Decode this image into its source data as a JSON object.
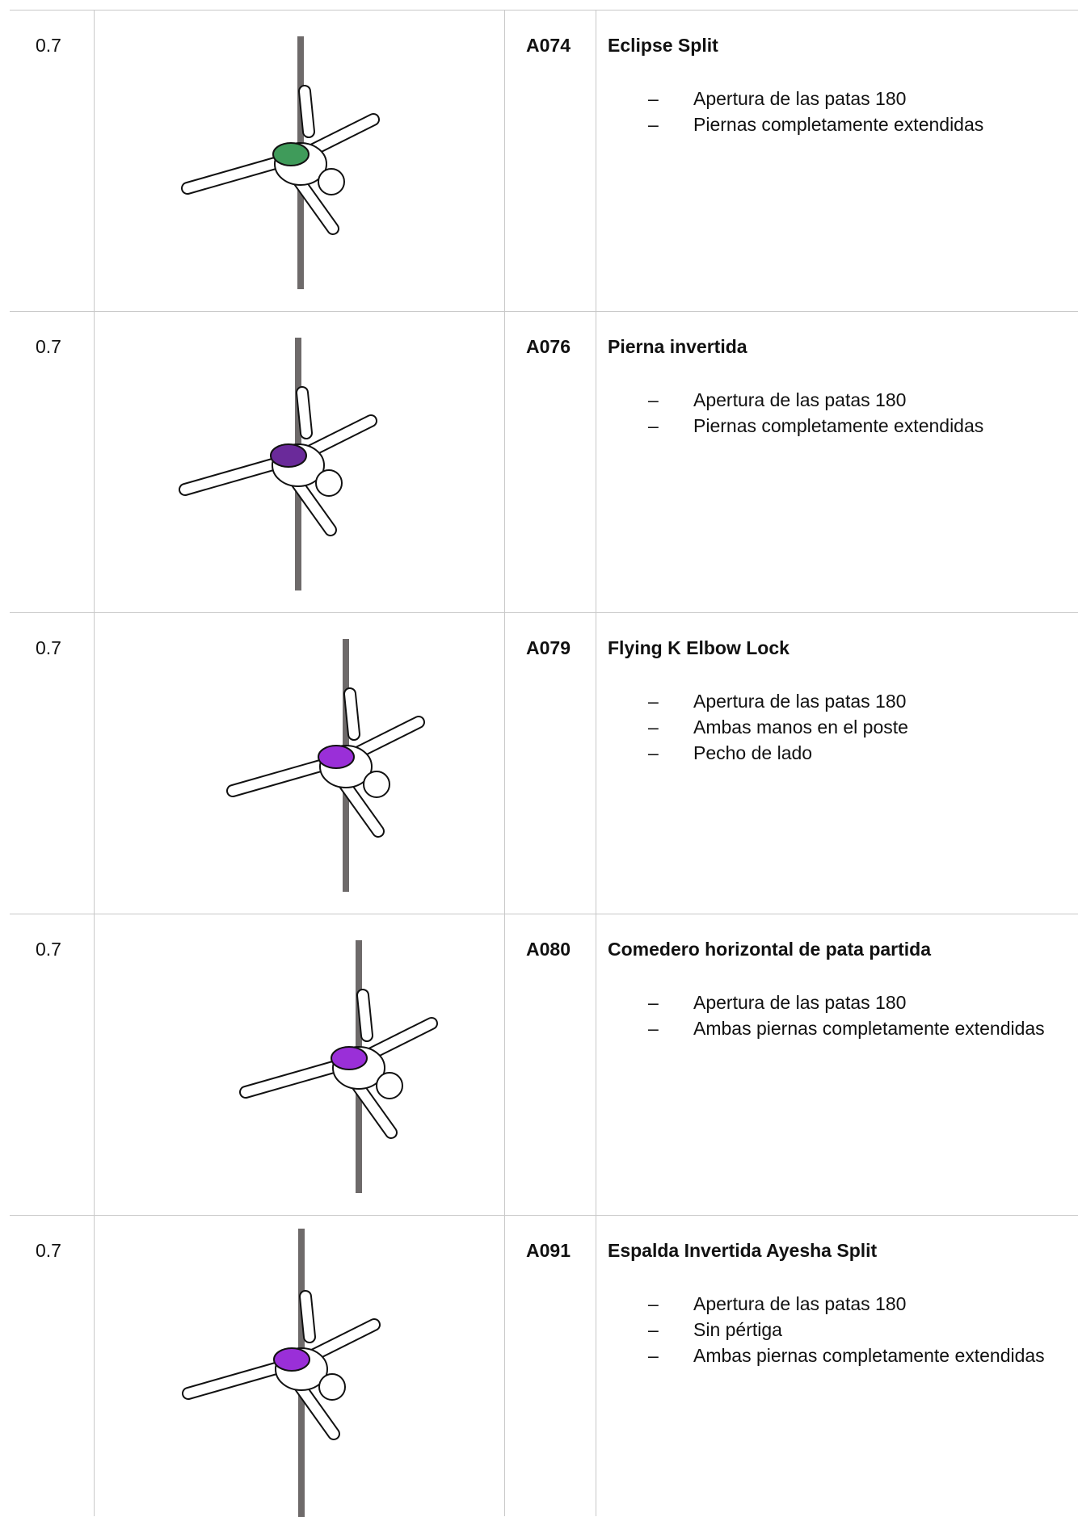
{
  "table": {
    "rows": [
      {
        "score": "0.7",
        "code": "A074",
        "name": "Eclipse Split",
        "items": [
          "Apertura de las patas 180",
          "Piernas completamente extendidas"
        ]
      },
      {
        "score": "0.7",
        "code": "A076",
        "name": "Pierna invertida",
        "items": [
          "Apertura de las patas 180",
          "Piernas completamente extendidas"
        ]
      },
      {
        "score": "0.7",
        "code": "A079",
        "name": "Flying K Elbow Lock",
        "items": [
          "Apertura de las patas 180",
          "Ambas manos en el poste",
          "Pecho de lado"
        ]
      },
      {
        "score": "0.7",
        "code": "A080",
        "name": "Comedero horizontal de pata partida",
        "items": [
          "Apertura de las patas 180",
          "Ambas piernas completamente extendidas"
        ]
      },
      {
        "score": "0.7",
        "code": "A091",
        "name": "Espalda Invertida Ayesha Split",
        "items": [
          "Apertura de las patas 180",
          "Sin pértiga",
          "Ambas piernas completamente extendidas"
        ]
      }
    ]
  }
}
